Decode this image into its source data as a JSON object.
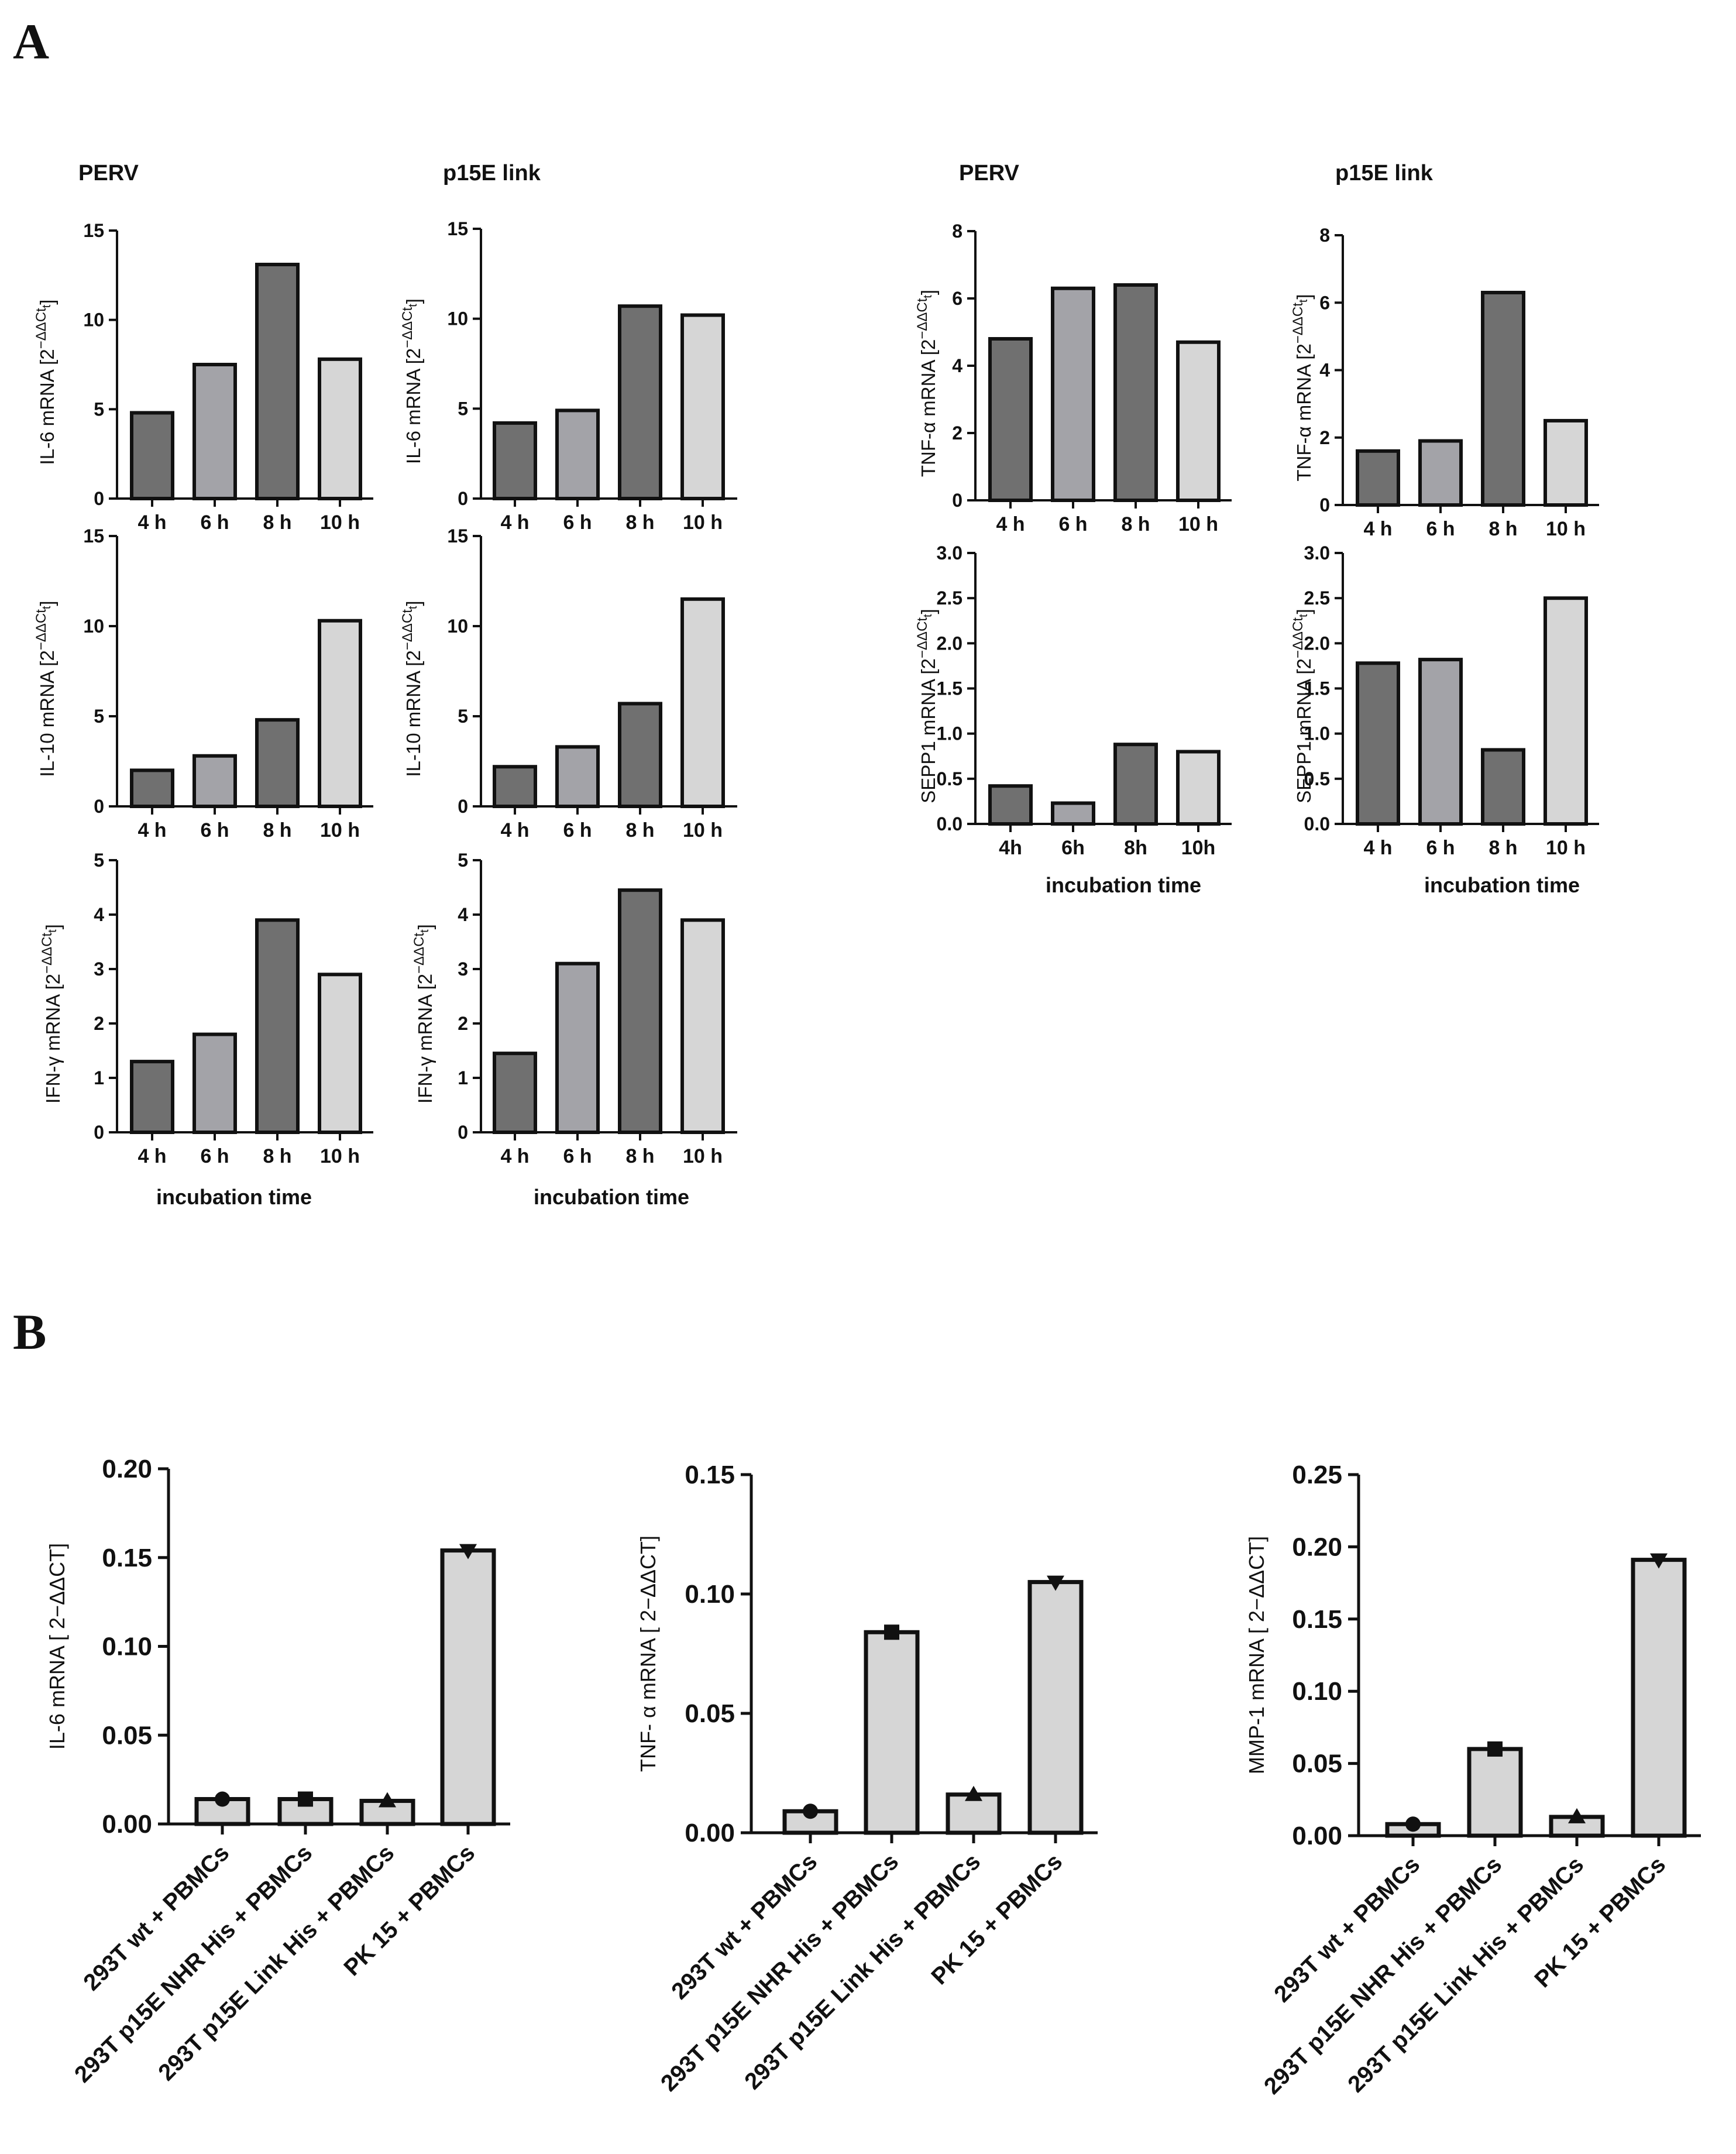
{
  "panels": {
    "a": "A",
    "b": "B"
  },
  "colors": {
    "bar_4h": "#707070",
    "bar_6h": "#a3a3a8",
    "bar_8h": "#707070",
    "bar_10h": "#d6d6d6",
    "bar_b": "#d6d6d6",
    "stroke": "#111111"
  },
  "chart_data": [
    {
      "id": "a_il6_perv",
      "type": "bar",
      "title": "PERV",
      "ylabel_main": "IL-6 mRNA [2",
      "ylabel_sup": "−ΔΔCt",
      "ylabel_sub": "t",
      "ylabel_close": "]",
      "categories": [
        "4 h",
        "6 h",
        "8 h",
        "10 h"
      ],
      "values": [
        4.8,
        7.5,
        13.1,
        7.8
      ],
      "ylim": [
        0,
        15
      ],
      "yticks": [
        "0",
        "5",
        "10",
        "15"
      ],
      "xlabel": ""
    },
    {
      "id": "a_il6_p15e",
      "type": "bar",
      "title": "p15E link",
      "ylabel_main": "IL-6 mRNA [2",
      "ylabel_sup": "−ΔΔCt",
      "ylabel_sub": "t",
      "ylabel_close": "]",
      "categories": [
        "4 h",
        "6 h",
        "8 h",
        "10 h"
      ],
      "values": [
        4.2,
        4.9,
        10.7,
        10.2
      ],
      "ylim": [
        0,
        15
      ],
      "yticks": [
        "0",
        "5",
        "10",
        "15"
      ],
      "xlabel": ""
    },
    {
      "id": "a_tnf_perv",
      "type": "bar",
      "title": "PERV",
      "ylabel_main": "TNF-α mRNA [2",
      "ylabel_sup": "−ΔΔCt",
      "ylabel_sub": "t",
      "ylabel_close": "]",
      "categories": [
        "4 h",
        "6 h",
        "8 h",
        "10 h"
      ],
      "values": [
        4.8,
        6.3,
        6.4,
        4.7
      ],
      "ylim": [
        0,
        8
      ],
      "yticks": [
        "0",
        "2",
        "4",
        "6",
        "8"
      ],
      "xlabel": ""
    },
    {
      "id": "a_tnf_p15e",
      "type": "bar",
      "title": "p15E link",
      "ylabel_main": "TNF-α mRNA [2",
      "ylabel_sup": "−ΔΔCt",
      "ylabel_sub": "t",
      "ylabel_close": "]",
      "categories": [
        "4 h",
        "6 h",
        "8 h",
        "10 h"
      ],
      "values": [
        1.6,
        1.9,
        6.3,
        2.5
      ],
      "ylim": [
        0,
        8
      ],
      "yticks": [
        "0",
        "2",
        "4",
        "6",
        "8"
      ],
      "xlabel": ""
    },
    {
      "id": "a_il10_perv",
      "type": "bar",
      "title": "",
      "ylabel_main": "IL-10 mRNA [2",
      "ylabel_sup": "−ΔΔCt",
      "ylabel_sub": "t",
      "ylabel_close": "]",
      "categories": [
        "4 h",
        "6 h",
        "8 h",
        "10 h"
      ],
      "values": [
        2.0,
        2.8,
        4.8,
        10.3
      ],
      "ylim": [
        0,
        15
      ],
      "yticks": [
        "0",
        "5",
        "10",
        "15"
      ],
      "xlabel": ""
    },
    {
      "id": "a_il10_p15e",
      "type": "bar",
      "title": "",
      "ylabel_main": "IL-10 mRNA [2",
      "ylabel_sup": "−ΔΔCt",
      "ylabel_sub": "t",
      "ylabel_close": "]",
      "categories": [
        "4 h",
        "6 h",
        "8 h",
        "10 h"
      ],
      "values": [
        2.2,
        3.3,
        5.7,
        11.5
      ],
      "ylim": [
        0,
        15
      ],
      "yticks": [
        "0",
        "5",
        "10",
        "15"
      ],
      "xlabel": ""
    },
    {
      "id": "a_sepp1_perv",
      "type": "bar",
      "title": "",
      "ylabel_main": "SEPP1 mRNA [2",
      "ylabel_sup": "−ΔΔCt",
      "ylabel_sub": "t",
      "ylabel_close": "]",
      "categories": [
        "4h",
        "6h",
        "8h",
        "10h"
      ],
      "values": [
        0.42,
        0.23,
        0.88,
        0.8
      ],
      "ylim": [
        0,
        3
      ],
      "yticks": [
        "0.0",
        "0.5",
        "1.0",
        "1.5",
        "2.0",
        "2.5",
        "3.0"
      ],
      "xlabel": "incubation time"
    },
    {
      "id": "a_sepp1_p15e",
      "type": "bar",
      "title": "",
      "ylabel_main": "SEPP1 mRNA [2",
      "ylabel_sup": "−ΔΔCt",
      "ylabel_sub": "t",
      "ylabel_close": "]",
      "categories": [
        "4 h",
        "6 h",
        "8 h",
        "10 h"
      ],
      "values": [
        1.78,
        1.82,
        0.82,
        2.5
      ],
      "ylim": [
        0,
        3
      ],
      "yticks": [
        "0.0",
        "0.5",
        "1.0",
        "1.5",
        "2.0",
        "2.5",
        "3.0"
      ],
      "xlabel": "incubation time"
    },
    {
      "id": "a_ifn_perv",
      "type": "bar",
      "title": "",
      "ylabel_main": "IFN-γ mRNA [2",
      "ylabel_sup": "−ΔΔCt",
      "ylabel_sub": "t",
      "ylabel_close": "]",
      "categories": [
        "4 h",
        "6 h",
        "8 h",
        "10 h"
      ],
      "values": [
        1.3,
        1.8,
        3.9,
        2.9
      ],
      "ylim": [
        0,
        5
      ],
      "yticks": [
        "0",
        "1",
        "2",
        "3",
        "4",
        "5"
      ],
      "xlabel": "incubation time"
    },
    {
      "id": "a_ifn_p15e",
      "type": "bar",
      "title": "",
      "ylabel_main": "IFN-γ mRNA [2",
      "ylabel_sup": "−ΔΔCt",
      "ylabel_sub": "t",
      "ylabel_close": "]",
      "categories": [
        "4 h",
        "6 h",
        "8 h",
        "10 h"
      ],
      "values": [
        1.45,
        3.1,
        4.45,
        3.9
      ],
      "ylim": [
        0,
        5
      ],
      "yticks": [
        "0",
        "1",
        "2",
        "3",
        "4",
        "5"
      ],
      "xlabel": "incubation time"
    },
    {
      "id": "b_il6",
      "type": "bar",
      "title": "",
      "ylabel": "IL-6 mRNA [ 2−ΔΔCT]",
      "categories": [
        "293T wt + PBMCs",
        "293T p15E NHR His + PBMCs",
        "293T p15E Link His + PBMCs",
        "PK 15 + PBMCs"
      ],
      "values": [
        0.014,
        0.014,
        0.013,
        0.154
      ],
      "markers": [
        "circle",
        "square",
        "triangle-up",
        "triangle-down"
      ],
      "ylim": [
        0,
        0.2
      ],
      "yticks": [
        "0.00",
        "0.05",
        "0.10",
        "0.15",
        "0.20"
      ]
    },
    {
      "id": "b_tnf",
      "type": "bar",
      "title": "",
      "ylabel": "TNF- α mRNA [ 2−ΔΔCT]",
      "categories": [
        "293T wt + PBMCs",
        "293T p15E NHR His + PBMCs",
        "293T p15E Link His + PBMCs",
        "PK 15 + PBMCs"
      ],
      "values": [
        0.009,
        0.084,
        0.016,
        0.105
      ],
      "markers": [
        "circle",
        "square",
        "triangle-up",
        "triangle-down"
      ],
      "ylim": [
        0,
        0.15
      ],
      "yticks": [
        "0.00",
        "0.05",
        "0.10",
        "0.15"
      ]
    },
    {
      "id": "b_mmp1",
      "type": "bar",
      "title": "",
      "ylabel": "MMP-1 mRNA [ 2−ΔΔCT]",
      "categories": [
        "293T wt + PBMCs",
        "293T p15E NHR His + PBMCs",
        "293T p15E Link His + PBMCs",
        "PK 15 + PBMCs"
      ],
      "values": [
        0.008,
        0.06,
        0.013,
        0.191
      ],
      "markers": [
        "circle",
        "square",
        "triangle-up",
        "triangle-down"
      ],
      "ylim": [
        0,
        0.25
      ],
      "yticks": [
        "0.00",
        "0.05",
        "0.10",
        "0.15",
        "0.20",
        "0.25"
      ]
    }
  ]
}
